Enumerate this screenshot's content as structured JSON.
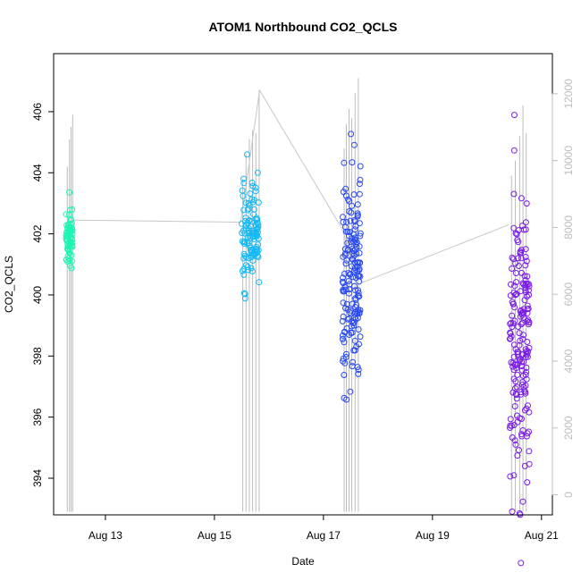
{
  "chart_data": {
    "type": "scatter",
    "title": "ATOM1 Northbound CO2_QCLS",
    "xlabel": "Date",
    "ylabel": "CO2_QCLS",
    "x_tick_labels": [
      "Aug 13",
      "Aug 15",
      "Aug 17",
      "Aug 19",
      "Aug 21"
    ],
    "x_tick_days": [
      13,
      15,
      17,
      19,
      21
    ],
    "xlim_days": [
      12.05,
      21.2
    ],
    "ylim": [
      392.8,
      407.9
    ],
    "y_ticks": [
      394,
      396,
      398,
      400,
      402,
      404,
      406
    ],
    "y2_ticks": [
      0,
      2000,
      4000,
      6000,
      8000,
      10000,
      12000
    ],
    "y2lim": [
      -600,
      13200
    ],
    "y2_meaning": "altitude (right axis, grey)",
    "grid": false,
    "legend": "none",
    "colors": {
      "flight1": "#1CF5B5",
      "flight2": "#12B8F5",
      "flight3": "#2849F0",
      "flight4": "#7A1DE8",
      "altitude": "#bdbdbd",
      "connector": "#c8c8c8"
    },
    "series": [
      {
        "x_range_days": [
          12.28,
          12.4
        ],
        "co2_mean": 401.9,
        "co2_spread": 1.6,
        "n": 70,
        "color_key": "flight1"
      },
      {
        "x_range_days": [
          15.5,
          15.82
        ],
        "co2_mean": 402.0,
        "co2_spread": 2.6,
        "n": 110,
        "color_key": "flight2"
      },
      {
        "x_range_days": [
          17.35,
          17.68
        ],
        "co2_mean": 400.7,
        "co2_spread": 5.5,
        "n": 170,
        "color_key": "flight3"
      },
      {
        "x_range_days": [
          20.42,
          20.78
        ],
        "co2_mean": 398.5,
        "co2_spread": 7.5,
        "n": 190,
        "color_key": "flight4"
      }
    ],
    "connector_line": [
      {
        "x": 12.38,
        "y": 402.45
      },
      {
        "x": 15.48,
        "y": 402.38
      },
      {
        "x": 15.83,
        "y": 406.7
      },
      {
        "x": 17.33,
        "y": 402.2
      },
      {
        "x": 17.7,
        "y": 400.4
      },
      {
        "x": 20.4,
        "y": 402.3
      }
    ],
    "altitude_spikes": [
      {
        "x": 12.3,
        "top": 404.2
      },
      {
        "x": 12.34,
        "top": 405.1
      },
      {
        "x": 12.37,
        "top": 405.5
      },
      {
        "x": 12.4,
        "top": 405.9
      },
      {
        "x": 15.52,
        "top": 403.8
      },
      {
        "x": 15.58,
        "top": 404.6
      },
      {
        "x": 15.64,
        "top": 405.1
      },
      {
        "x": 15.7,
        "top": 405.4
      },
      {
        "x": 15.76,
        "top": 405.3
      },
      {
        "x": 15.82,
        "top": 406.7
      },
      {
        "x": 17.38,
        "top": 404.8
      },
      {
        "x": 17.42,
        "top": 405.6
      },
      {
        "x": 17.47,
        "top": 406.1
      },
      {
        "x": 17.52,
        "top": 405.8
      },
      {
        "x": 17.58,
        "top": 406.6
      },
      {
        "x": 17.64,
        "top": 407.1
      },
      {
        "x": 20.45,
        "top": 403.9
      },
      {
        "x": 20.52,
        "top": 404.4
      },
      {
        "x": 20.6,
        "top": 405.2
      },
      {
        "x": 20.66,
        "top": 406.2
      },
      {
        "x": 20.72,
        "top": 405.3
      }
    ],
    "altitude_bottom": 392.9
  }
}
